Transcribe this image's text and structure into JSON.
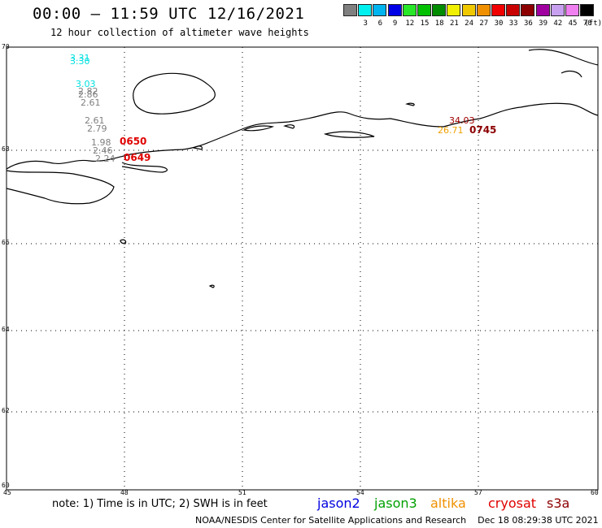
{
  "header": {
    "title": "00:00 – 11:59 UTC 12/16/2021",
    "subtitle": "12 hour collection of altimeter wave heights"
  },
  "color_scale": {
    "unit": "(ft)",
    "swatches": [
      {
        "label": "",
        "color": "#808080"
      },
      {
        "label": "3",
        "color": "#00f0f0"
      },
      {
        "label": "6",
        "color": "#00b4f0"
      },
      {
        "label": "9",
        "color": "#0000e6"
      },
      {
        "label": "12",
        "color": "#28e628"
      },
      {
        "label": "15",
        "color": "#00c000"
      },
      {
        "label": "18",
        "color": "#008c00"
      },
      {
        "label": "21",
        "color": "#f0f000"
      },
      {
        "label": "24",
        "color": "#f0c800"
      },
      {
        "label": "27",
        "color": "#f09000"
      },
      {
        "label": "30",
        "color": "#f00000"
      },
      {
        "label": "33",
        "color": "#c80000"
      },
      {
        "label": "36",
        "color": "#8c0000"
      },
      {
        "label": "39",
        "color": "#a000a0"
      },
      {
        "label": "42",
        "color": "#c8a0f0"
      },
      {
        "label": "45",
        "color": "#f080f0"
      },
      {
        "label": "70",
        "color": "#000000"
      }
    ]
  },
  "map": {
    "lat_labels": [
      "70",
      "68",
      "66",
      "64",
      "62",
      "60"
    ],
    "lon_labels": [
      "45",
      "48",
      "51",
      "54",
      "57",
      "60"
    ]
  },
  "observations": [
    {
      "text": "3.31",
      "color": "#00e0e0"
    },
    {
      "text": "3.30",
      "color": "#00e0e0"
    },
    {
      "text": "3.03",
      "color": "#00e0e0"
    },
    {
      "text": "2.82",
      "color": "#808080"
    },
    {
      "text": "2.86",
      "color": "#808080"
    },
    {
      "text": "2.61",
      "color": "#808080"
    },
    {
      "text": "2.61",
      "color": "#808080"
    },
    {
      "text": "2.79",
      "color": "#808080"
    },
    {
      "text": "1.98",
      "color": "#808080"
    },
    {
      "text": "2.46",
      "color": "#808080"
    },
    {
      "text": "2.24",
      "color": "#808080"
    },
    {
      "text": "34.03",
      "color": "#a00000"
    },
    {
      "text": "26.71",
      "color": "#f0a000"
    }
  ],
  "pass_times": [
    {
      "text": "0650",
      "color": "#e00000"
    },
    {
      "text": "0649",
      "color": "#e00000"
    },
    {
      "text": "0745",
      "color": "#8c0000"
    }
  ],
  "footer": {
    "note": "note: 1) Time is in UTC; 2) SWH is in feet",
    "satellites": [
      {
        "name": "jason2",
        "color": "#0000e0"
      },
      {
        "name": "jason3",
        "color": "#00a000"
      },
      {
        "name": "altika",
        "color": "#f09000"
      },
      {
        "name": "cryosat",
        "color": "#e00000"
      },
      {
        "name": "s3a",
        "color": "#8c0000"
      }
    ],
    "credit": "NOAA/NESDIS Center for Satellite Applications and Research",
    "timestamp": "Dec 18 08:29:38 UTC 2021"
  }
}
